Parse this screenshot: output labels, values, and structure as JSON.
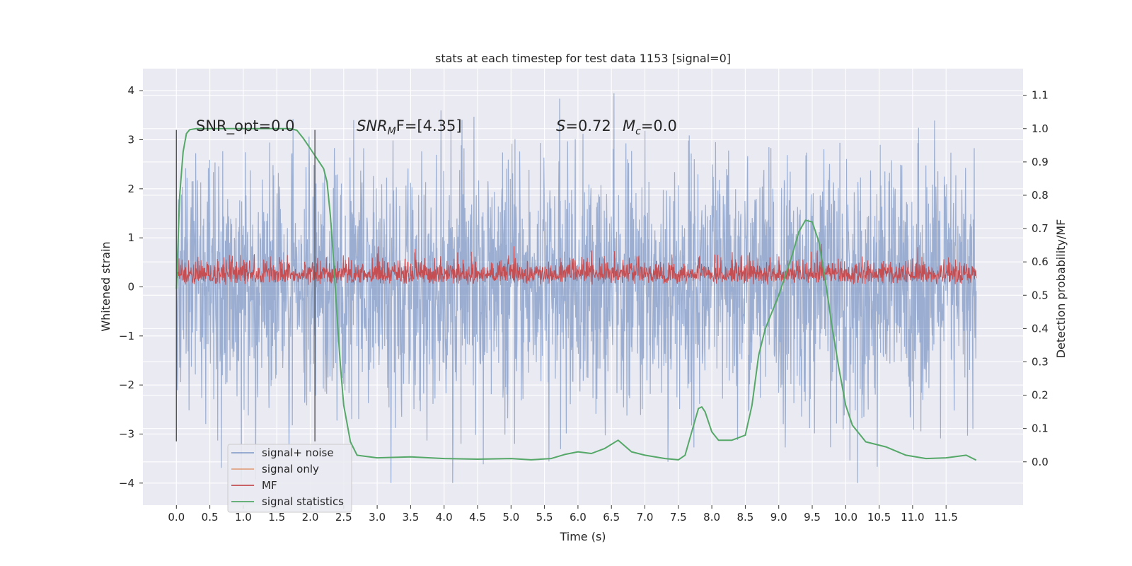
{
  "chart_data": {
    "type": "line",
    "title": "stats at each timestep for test data 1153 [signal=0]",
    "xlabel": "Time (s)",
    "ylabel_left": "Whitened strain",
    "ylabel_right": "Detection probability/MF",
    "xlim": [
      -0.5,
      12.65
    ],
    "ylim_left": [
      -4.45,
      4.45
    ],
    "ylim_right": [
      -0.13,
      1.18
    ],
    "xticks": [
      "0.0",
      "0.5",
      "1.0",
      "1.5",
      "2.0",
      "2.5",
      "3.0",
      "3.5",
      "4.0",
      "4.5",
      "5.0",
      "5.5",
      "6.0",
      "6.5",
      "7.0",
      "7.5",
      "8.0",
      "8.5",
      "9.0",
      "9.5",
      "10.0",
      "10.5",
      "11.0",
      "11.5"
    ],
    "yticks_left": [
      "4",
      "3",
      "2",
      "1",
      "0",
      "−1",
      "−2",
      "−3",
      "−4"
    ],
    "yticks_right": [
      "1.1",
      "1.0",
      "0.9",
      "0.8",
      "0.7",
      "0.6",
      "0.5",
      "0.4",
      "0.3",
      "0.2",
      "0.1",
      "0.0"
    ],
    "grid": true,
    "legend_location": "lower-left",
    "background": "#eaeaf2",
    "colors": {
      "signal_noise": "#4c72b0",
      "signal_only": "#dd8452",
      "mf": "#c44e52",
      "signal_statistics": "#55a868",
      "window_marker": "#555555"
    },
    "annotations": {
      "snr_opt": "SNR_opt=0.0",
      "snr_mf_base": "SNR",
      "snr_mf_sub": "M",
      "snr_mf_rest": "F=[4.35]",
      "s_var": "S",
      "s_val": "=0.72",
      "mc_var": "M",
      "mc_sub": "c",
      "mc_val": "=0.0"
    },
    "window_markers_x": [
      0.0,
      2.07
    ],
    "window_markers_y": [
      -3.15,
      3.2
    ],
    "series": [
      {
        "name": "signal+ noise",
        "axis": "left",
        "style": "dense noise band, approx ±1.3 typical, peaks to ±4.1",
        "x_range": [
          0.0,
          11.95
        ],
        "y_range": [
          -4.0,
          4.1
        ]
      },
      {
        "name": "signal only",
        "axis": "left",
        "x": [],
        "y": []
      },
      {
        "name": "MF",
        "axis": "right",
        "style": "dense band between approx 0.5 and 0.6",
        "x_range": [
          0.0,
          11.95
        ],
        "y_range": [
          0.5,
          0.67
        ]
      },
      {
        "name": "signal statistics",
        "axis": "right",
        "x": [
          0.0,
          0.05,
          0.1,
          0.15,
          0.2,
          0.3,
          0.5,
          1.0,
          1.5,
          1.7,
          1.8,
          1.9,
          2.0,
          2.1,
          2.2,
          2.25,
          2.3,
          2.35,
          2.4,
          2.45,
          2.5,
          2.6,
          2.7,
          3.0,
          3.5,
          4.0,
          4.5,
          5.0,
          5.3,
          5.6,
          5.8,
          6.0,
          6.2,
          6.4,
          6.6,
          6.8,
          7.0,
          7.3,
          7.5,
          7.6,
          7.7,
          7.8,
          7.85,
          7.9,
          8.0,
          8.1,
          8.3,
          8.5,
          8.6,
          8.7,
          8.8,
          9.0,
          9.1,
          9.2,
          9.3,
          9.4,
          9.5,
          9.6,
          9.7,
          9.8,
          9.9,
          10.0,
          10.1,
          10.3,
          10.6,
          10.9,
          11.2,
          11.5,
          11.8,
          11.95
        ],
        "y": [
          0.52,
          0.8,
          0.93,
          0.985,
          0.997,
          1.0,
          1.0,
          1.0,
          1.0,
          1.0,
          0.995,
          0.97,
          0.94,
          0.91,
          0.88,
          0.84,
          0.74,
          0.6,
          0.44,
          0.29,
          0.17,
          0.06,
          0.02,
          0.012,
          0.015,
          0.01,
          0.008,
          0.01,
          0.006,
          0.01,
          0.022,
          0.03,
          0.025,
          0.04,
          0.065,
          0.03,
          0.02,
          0.01,
          0.006,
          0.02,
          0.09,
          0.16,
          0.165,
          0.15,
          0.09,
          0.065,
          0.065,
          0.08,
          0.17,
          0.32,
          0.4,
          0.5,
          0.56,
          0.62,
          0.69,
          0.725,
          0.72,
          0.66,
          0.54,
          0.4,
          0.28,
          0.17,
          0.11,
          0.06,
          0.045,
          0.02,
          0.01,
          0.012,
          0.02,
          0.005
        ]
      }
    ]
  }
}
